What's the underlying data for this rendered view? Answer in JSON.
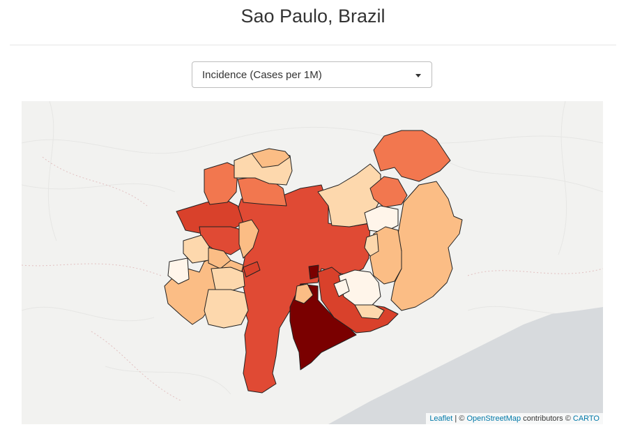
{
  "page": {
    "title": "Sao Paulo, Brazil"
  },
  "metric_select": {
    "selected": "Incidence (Cases per 1M)"
  },
  "map": {
    "basemap": "CARTO light",
    "colors": {
      "land": "#f2f2f0",
      "water": "#d7dadd",
      "border": "#222222",
      "scale": [
        "#fff5ea",
        "#fdd8ad",
        "#fbbd85",
        "#f2774f",
        "#e04a34",
        "#d9412b",
        "#7a0000"
      ]
    }
  },
  "attribution": {
    "leaflet": "Leaflet",
    "sep1": " | © ",
    "osm": "OpenStreetMap",
    "mid": " contributors © ",
    "carto": "CARTO"
  }
}
